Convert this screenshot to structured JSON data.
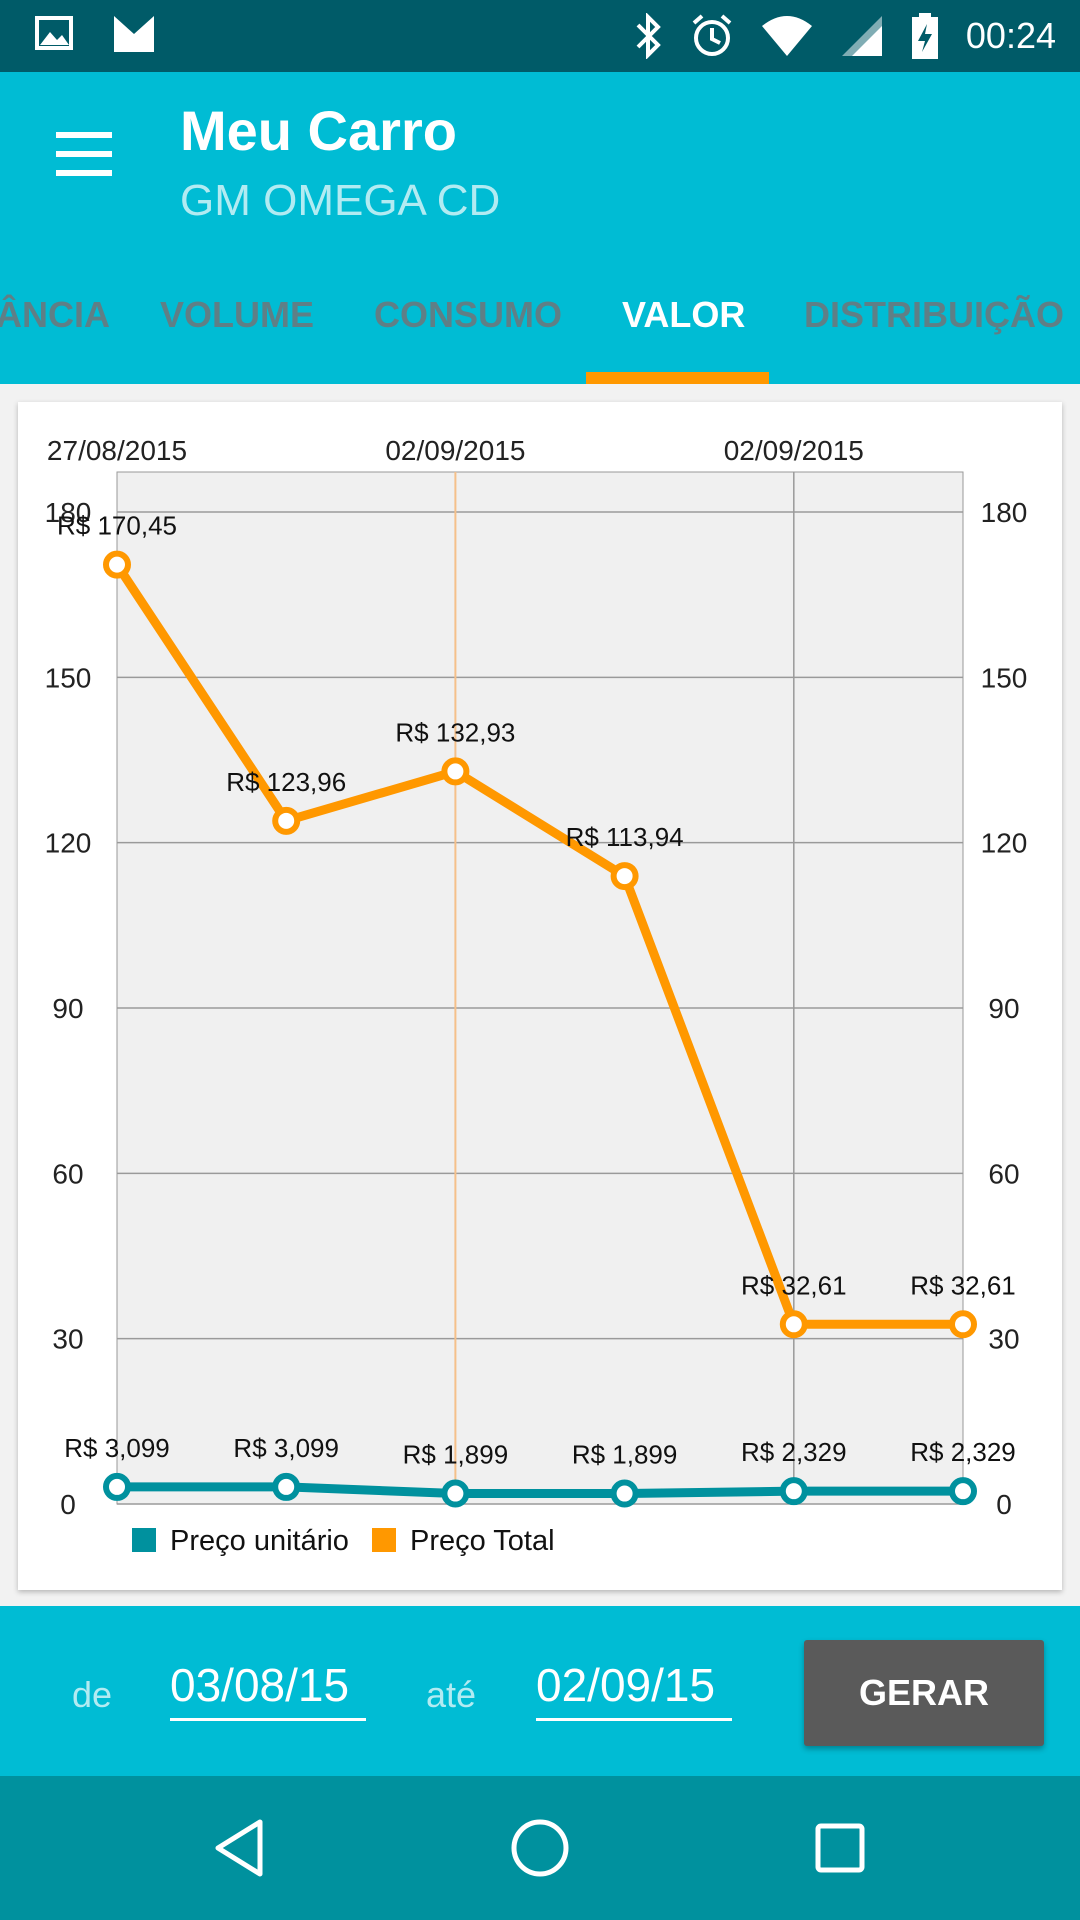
{
  "status_bar": {
    "time": "00:24",
    "icons": [
      "image-icon",
      "gmail-icon",
      "bluetooth-icon",
      "alarm-icon",
      "wifi-icon",
      "signal-icon",
      "battery-charging-icon"
    ]
  },
  "toolbar": {
    "title": "Meu Carro",
    "subtitle": "GM OMEGA CD",
    "menu_icon": "menu-icon"
  },
  "tabs": [
    {
      "label": "DISTÂNCIA",
      "visible_label": "ÂNCIA",
      "active": false
    },
    {
      "label": "VOLUME",
      "active": false
    },
    {
      "label": "CONSUMO",
      "active": false
    },
    {
      "label": "VALOR",
      "active": true
    },
    {
      "label": "DISTRIBUIÇÃO",
      "active": false
    }
  ],
  "colors": {
    "primary": "#00bcd4",
    "primary_dark": "#005b68",
    "accent": "#ff9800",
    "series_unit": "#00919e",
    "series_total": "#ff9800",
    "button": "#5a5a5a"
  },
  "chart_data": {
    "type": "line",
    "x_top_labels": [
      "27/08/2015",
      "02/09/2015",
      "02/09/2015"
    ],
    "x_count": 6,
    "y_ticks": [
      0,
      30,
      60,
      90,
      120,
      150,
      180
    ],
    "ylim": [
      0,
      180
    ],
    "grid": true,
    "legend_position": "bottom-left",
    "series": [
      {
        "name": "Preço unitário",
        "color": "#00919e",
        "values": [
          3.099,
          3.099,
          1.899,
          1.899,
          2.329,
          2.329
        ],
        "labels": [
          "R$ 3,099",
          "R$ 3,099",
          "R$ 1,899",
          "R$ 1,899",
          "R$ 2,329",
          "R$ 2,329"
        ]
      },
      {
        "name": "Preço Total",
        "color": "#ff9800",
        "values": [
          170.45,
          123.96,
          132.93,
          113.94,
          32.61,
          32.61
        ],
        "labels": [
          "R$ 170,45",
          "R$ 123,96",
          "R$ 132,93",
          "R$ 113,94",
          "R$ 32,61",
          "R$ 32,61"
        ]
      }
    ]
  },
  "filter": {
    "from_label": "de",
    "from_value": "03/08/15",
    "to_label": "até",
    "to_value": "02/09/15",
    "generate_label": "GERAR"
  },
  "nav_bar": {
    "icons": [
      "back-icon",
      "home-icon",
      "recents-icon"
    ]
  }
}
